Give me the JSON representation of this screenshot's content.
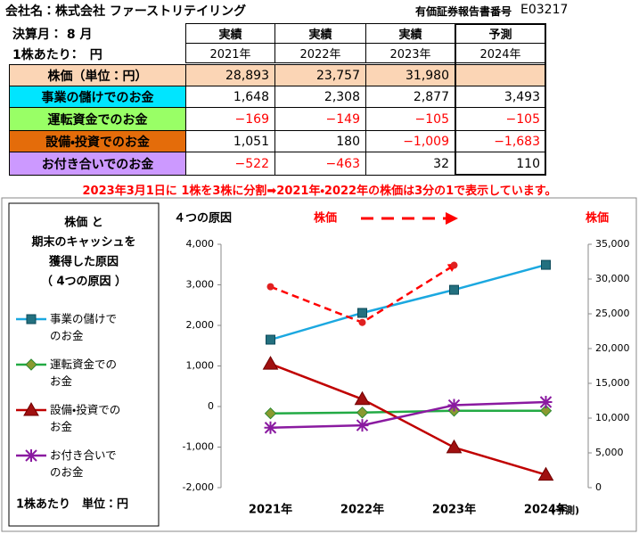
{
  "header": {
    "company": "会社名：株式会社 ファーストリテイリング",
    "doc_label": "有価証券報告書番号",
    "doc_number": "E03217"
  },
  "table": {
    "corner": [
      "決算月： 8 月",
      "1株あたり：　円"
    ],
    "columns": [
      {
        "kind": "実績",
        "year": "2021年"
      },
      {
        "kind": "実績",
        "year": "2022年"
      },
      {
        "kind": "実績",
        "year": "2023年"
      },
      {
        "kind": "予測",
        "year": "2024年"
      }
    ],
    "rows": [
      {
        "label": "株価（単位：円）",
        "color": "#fbd5b5",
        "cells": [
          "28,893",
          "23,757",
          "31,980",
          null
        ]
      },
      {
        "label": "事業の儲けでのお金",
        "color": "#00e5ff",
        "cells": [
          "1,648",
          "2,308",
          "2,877",
          "3,493"
        ]
      },
      {
        "label": "運転資金でのお金",
        "color": "#99ff66",
        "cells": [
          "−169",
          "−149",
          "−105",
          "−105"
        ]
      },
      {
        "label": "設備・投資でのお金",
        "color": "#e46c0a",
        "cells": [
          "1,051",
          "180",
          "−1,009",
          "−1,683"
        ]
      },
      {
        "label": "お付き合いでのお金",
        "color": "#cc99ff",
        "cells": [
          "−522",
          "−463",
          "32",
          "110"
        ]
      }
    ]
  },
  "note": "2023年3月1日に 1株を3株に分割➡2021年・2022年の株価は3分の1で表示しています。",
  "chart_data": {
    "type": "line",
    "title": "４つの原因",
    "legend_title_lines": [
      "株価 と",
      "期末のキャッシュを",
      "獲得した原因",
      "（ 4つの原因 ）"
    ],
    "unit_note": "1株あたり　単位：円",
    "arrow_label": "株価",
    "y2_label": "株価",
    "forecast_note": "(予測)",
    "categories": [
      "2021年",
      "2022年",
      "2023年",
      "2024年"
    ],
    "series": [
      {
        "name": "事業の儲けでのお金",
        "color": "#1ba8e0",
        "marker": "square",
        "marker_color": "#23707f",
        "values": [
          1648,
          2308,
          2877,
          3493
        ]
      },
      {
        "name": "運転資金でのお金",
        "color": "#22aa44",
        "marker": "diamond",
        "marker_color": "#8a9a30",
        "values": [
          -169,
          -149,
          -105,
          -105
        ]
      },
      {
        "name": "設備・投資でのお金",
        "color": "#c00000",
        "marker": "triangle",
        "marker_color": "#a01010",
        "values": [
          1051,
          180,
          -1009,
          -1683
        ]
      },
      {
        "name": "お付き合いでのお金",
        "color": "#8a1aa0",
        "marker": "star",
        "marker_color": "#8a1aa0",
        "values": [
          -522,
          -463,
          32,
          110
        ]
      },
      {
        "name": "株価",
        "color": "#ff0000",
        "marker": "circle",
        "marker_color": "#e02020",
        "axis": "y2",
        "dashed": true,
        "arrow": true,
        "values": [
          28893,
          23757,
          31980,
          null
        ]
      }
    ],
    "ylim": [
      -2000,
      4000
    ],
    "yticks": [
      {
        "value": -2000,
        "label": "-2,000"
      },
      {
        "value": -1000,
        "label": "-1,000"
      },
      0,
      {
        "value": 1000,
        "label": "1,000"
      },
      {
        "value": 2000,
        "label": "2,000"
      },
      {
        "value": 3000,
        "label": "3,000"
      },
      {
        "value": 4000,
        "label": "4,000"
      }
    ],
    "y2lim": [
      0,
      35000
    ],
    "y2ticks": [
      0,
      {
        "value": 5000,
        "label": "5,000"
      },
      {
        "value": 10000,
        "label": "10,000"
      },
      {
        "value": 15000,
        "label": "15,000"
      },
      {
        "value": 20000,
        "label": "20,000"
      },
      {
        "value": 25000,
        "label": "25,000"
      },
      {
        "value": 30000,
        "label": "30,000"
      },
      {
        "value": 35000,
        "label": "35,000"
      }
    ],
    "grid": false
  }
}
